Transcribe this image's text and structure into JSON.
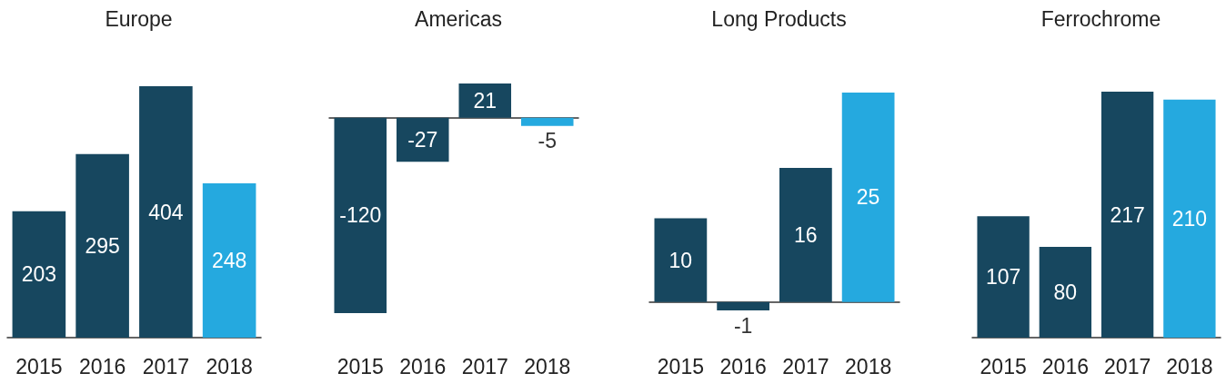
{
  "chart_data": [
    {
      "type": "bar",
      "title": "Europe",
      "categories": [
        "2015",
        "2016",
        "2017",
        "2018"
      ],
      "values": [
        203,
        295,
        404,
        248
      ],
      "colors": [
        "#17475f",
        "#17475f",
        "#17475f",
        "#25a9df"
      ],
      "data_labels": true,
      "tick_labels": "x"
    },
    {
      "type": "bar",
      "title": "Americas",
      "categories": [
        "2015",
        "2016",
        "2017",
        "2018"
      ],
      "values": [
        -120,
        -27,
        21,
        -5
      ],
      "colors": [
        "#17475f",
        "#17475f",
        "#17475f",
        "#25a9df"
      ],
      "data_labels": true,
      "tick_labels": "x"
    },
    {
      "type": "bar",
      "title": "Long Products",
      "categories": [
        "2015",
        "2016",
        "2017",
        "2018"
      ],
      "values": [
        10,
        -1,
        16,
        25
      ],
      "colors": [
        "#17475f",
        "#17475f",
        "#17475f",
        "#25a9df"
      ],
      "data_labels": true,
      "tick_labels": "x"
    },
    {
      "type": "bar",
      "title": "Ferrochrome",
      "categories": [
        "2015",
        "2016",
        "2017",
        "2018"
      ],
      "values": [
        107,
        80,
        217,
        210
      ],
      "colors": [
        "#17475f",
        "#17475f",
        "#17475f",
        "#25a9df"
      ],
      "data_labels": true,
      "tick_labels": "x"
    }
  ]
}
